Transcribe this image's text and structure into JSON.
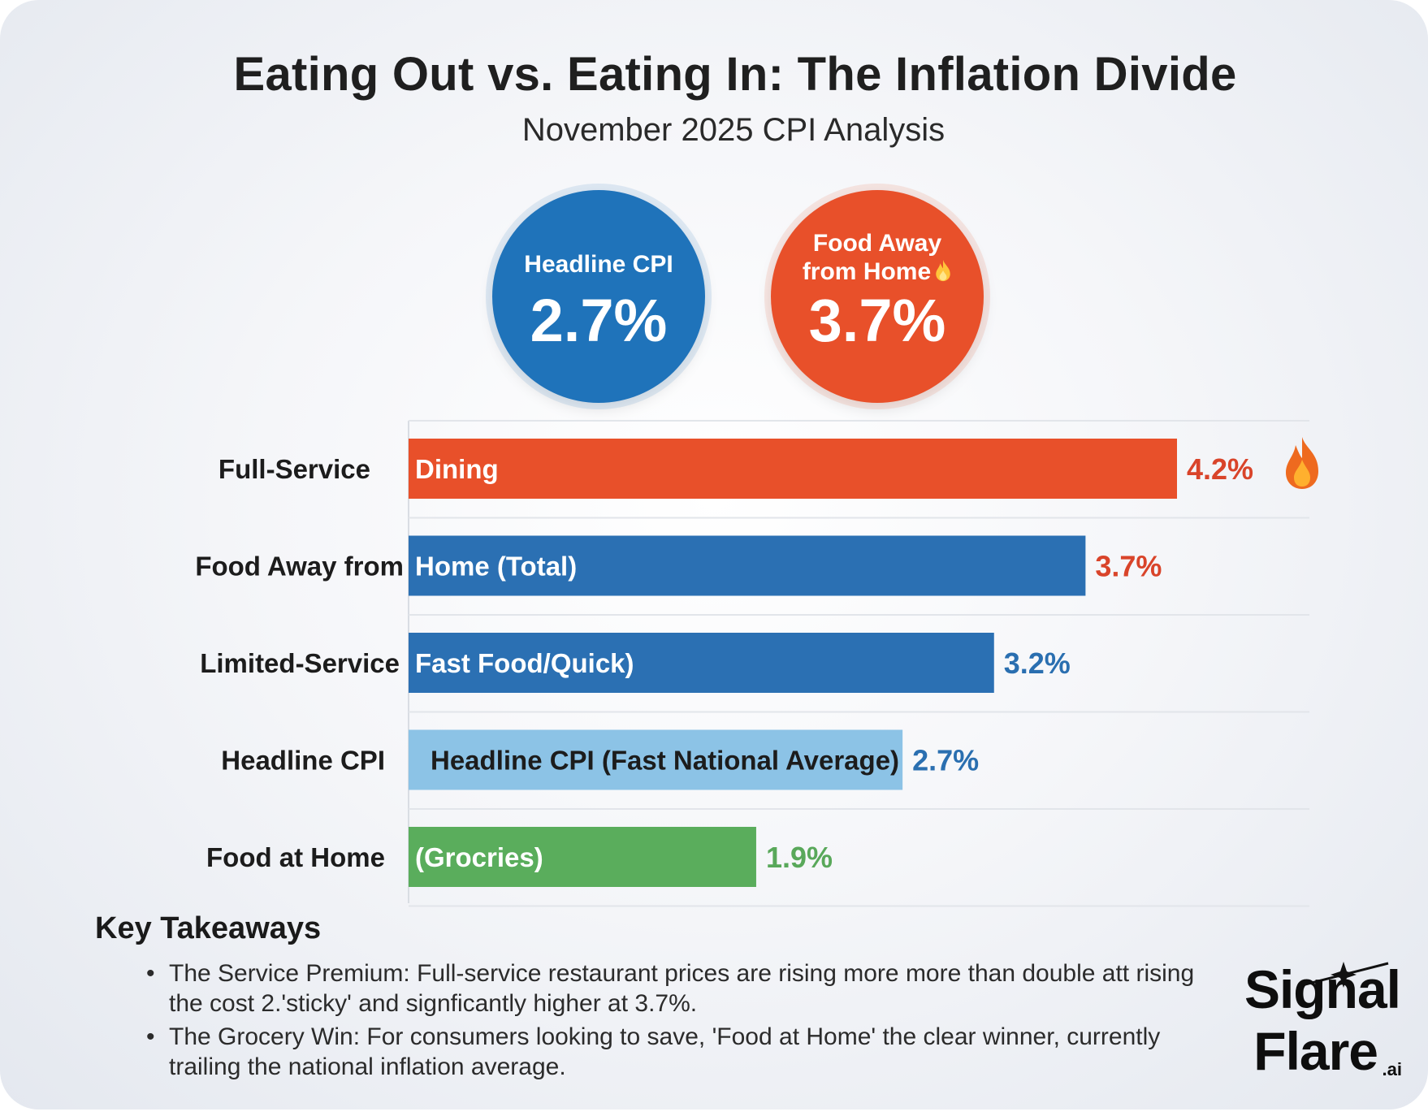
{
  "title": "Eating Out vs. Eating In: The Inflation Divide",
  "subtitle": "November 2025 CPI Analysis",
  "bubbles": {
    "headline": {
      "label": "Headline CPI",
      "value": "2.7%",
      "color": "#1f73ba"
    },
    "food_away": {
      "label_line1": "Food Away",
      "label_line2": "from Home",
      "value": "3.7%",
      "color": "#e8502a",
      "icon": "flame-icon"
    }
  },
  "chart_data": {
    "type": "bar",
    "orientation": "horizontal",
    "xlim": [
      0,
      4.2
    ],
    "grid": true,
    "categories": [
      "Full-Service",
      "Food Away from",
      "Limited-Service",
      "Headline CPI",
      "Food at Home"
    ],
    "bar_labels": [
      "Dining",
      "Home (Total)",
      "Fast Food/Quick)",
      "Headline CPI (Fast National Average)",
      "(Grocries)"
    ],
    "values": [
      4.2,
      3.7,
      3.2,
      2.7,
      1.9
    ],
    "value_labels": [
      "4.2%",
      "3.7%",
      "3.2%",
      "2.7%",
      "1.9%"
    ],
    "bar_colors": [
      "#e8502a",
      "#2b70b3",
      "#2b70b3",
      "#8cc3e6",
      "#5aad5c"
    ],
    "value_colors": [
      "#d9442a",
      "#d9442a",
      "#2a6fb0",
      "#2a6fb0",
      "#59a85a"
    ],
    "bar_text_colors": [
      "#ffffff",
      "#ffffff",
      "#ffffff",
      "#1c1c1c",
      "#ffffff"
    ],
    "annotation_icon": "flame-icon"
  },
  "takeaways": {
    "title": "Key Takeaways",
    "items": [
      "The Service Premium: Full-service restaurant prices are rising more more than double att rising the cost 2.'sticky' and signficantly higher at 3.7%.",
      "The Grocery Win: For consumers looking to save, 'Food at Home' the clear winner, currently trailing the national inflation average."
    ]
  },
  "logo": {
    "line1": "Signal",
    "line2": "Flare",
    "suffix": ".ai"
  }
}
